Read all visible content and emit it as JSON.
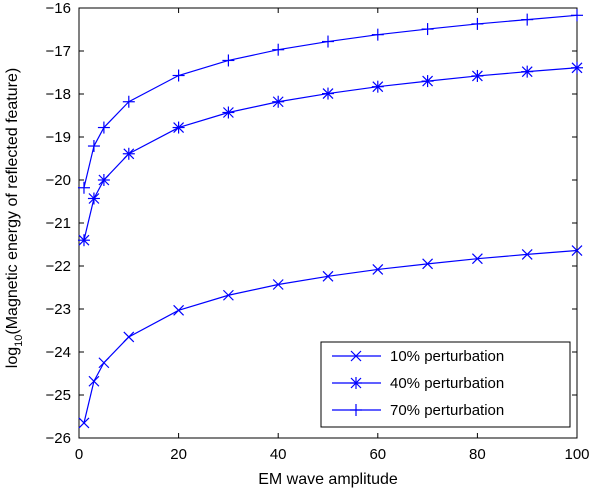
{
  "chart_data": {
    "type": "line",
    "xlabel": "EM wave amplitude",
    "ylabel": {
      "prefix": "log",
      "subscript": "10",
      "rest": "(Magnetic energy of reflected feature)"
    },
    "xlim": [
      0,
      100
    ],
    "ylim": [
      -26,
      -16
    ],
    "xticks": [
      0,
      20,
      40,
      60,
      80,
      100
    ],
    "yticks": [
      -26,
      -25,
      -24,
      -23,
      -22,
      -21,
      -20,
      -19,
      -18,
      -17,
      -16
    ],
    "x": [
      1,
      3,
      5,
      10,
      20,
      30,
      40,
      50,
      60,
      70,
      80,
      90,
      100
    ],
    "series": [
      {
        "name": "10% perturbation",
        "marker": "x",
        "color": "#0000ff",
        "values": [
          -25.65,
          -24.68,
          -24.25,
          -23.65,
          -23.03,
          -22.68,
          -22.43,
          -22.24,
          -22.08,
          -21.95,
          -21.83,
          -21.73,
          -21.64
        ]
      },
      {
        "name": "40% perturbation",
        "marker": "asterisk",
        "color": "#0000ff",
        "values": [
          -21.4,
          -20.43,
          -20.0,
          -19.39,
          -18.78,
          -18.43,
          -18.18,
          -17.99,
          -17.83,
          -17.7,
          -17.58,
          -17.48,
          -17.39
        ]
      },
      {
        "name": "70% perturbation",
        "marker": "plus",
        "color": "#0000ff",
        "values": [
          -20.18,
          -19.21,
          -18.78,
          -18.18,
          -17.57,
          -17.22,
          -16.97,
          -16.78,
          -16.62,
          -16.49,
          -16.37,
          -16.27,
          -16.17
        ]
      }
    ],
    "legend_position": "bottom-right",
    "grid": false
  }
}
